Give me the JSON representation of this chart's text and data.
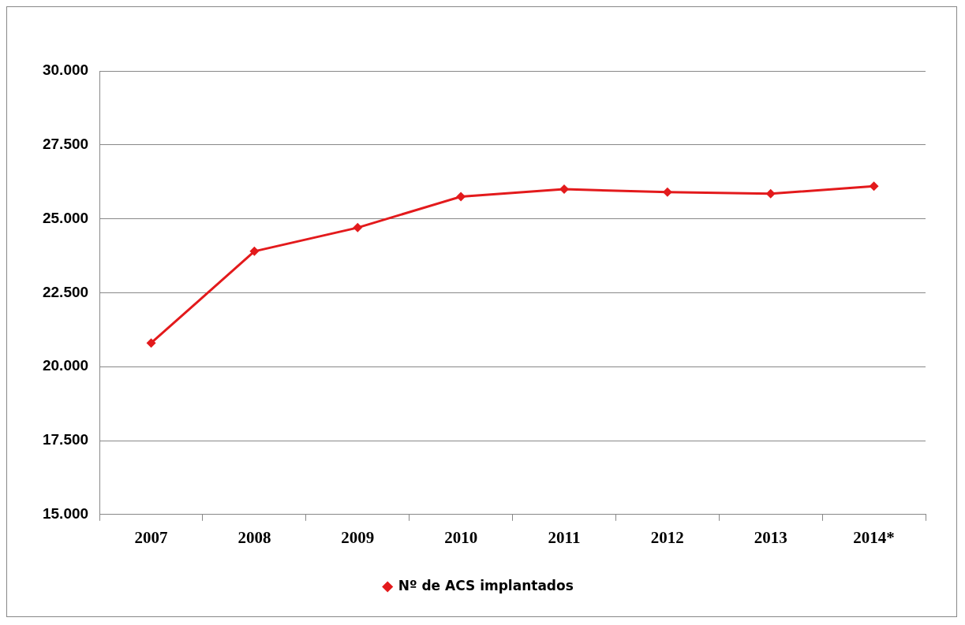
{
  "chart_data": {
    "type": "line",
    "categories": [
      "2007",
      "2008",
      "2009",
      "2010",
      "2011",
      "2012",
      "2013",
      "2014*"
    ],
    "series": [
      {
        "name": "Nº de ACS implantados",
        "color": "#e31a1c",
        "values": [
          20800,
          23900,
          24700,
          25750,
          26000,
          25900,
          25850,
          26100
        ]
      }
    ],
    "ylim": [
      15000,
      30000
    ],
    "yticks": [
      {
        "value": 15000,
        "label": "15.000"
      },
      {
        "value": 17500,
        "label": "17.500"
      },
      {
        "value": 20000,
        "label": "20.000"
      },
      {
        "value": 22500,
        "label": "22.500"
      },
      {
        "value": 25000,
        "label": "25.000"
      },
      {
        "value": 27500,
        "label": "27.500"
      },
      {
        "value": 30000,
        "label": "30.000"
      }
    ],
    "grid": "y",
    "legend": "bottom",
    "marker": "diamond",
    "line_style": "solid"
  }
}
